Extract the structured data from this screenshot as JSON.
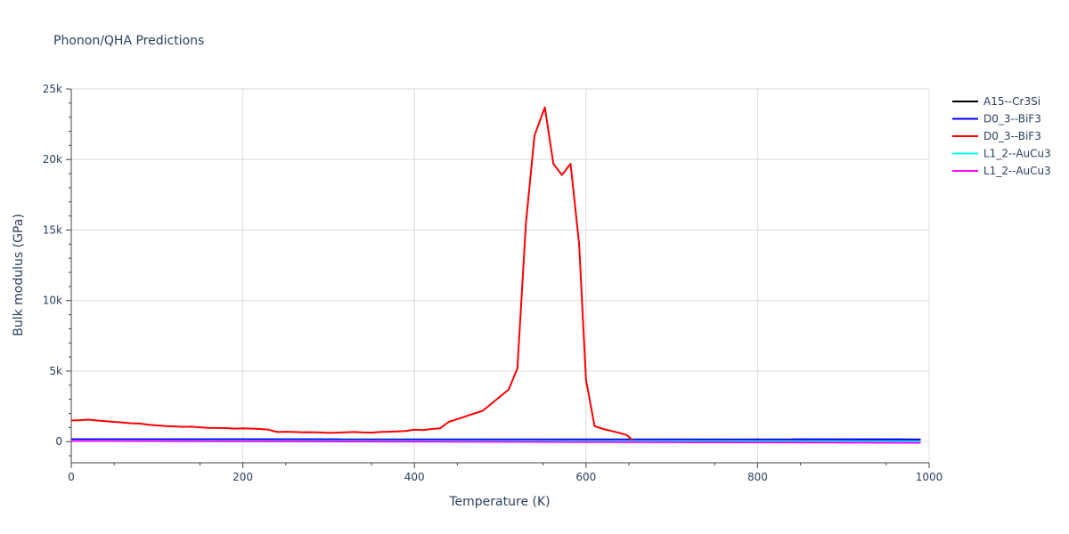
{
  "chart_data": {
    "type": "line",
    "title": "Phonon/QHA Predictions",
    "xlabel": "Temperature (K)",
    "ylabel": "Bulk modulus (GPa)",
    "xlim": [
      0,
      1000
    ],
    "ylim": [
      -1500,
      25000
    ],
    "x_ticks": [
      0,
      200,
      400,
      600,
      800,
      1000
    ],
    "x_tick_labels": [
      "0",
      "200",
      "400",
      "600",
      "800",
      "1000"
    ],
    "y_ticks": [
      0,
      5000,
      10000,
      15000,
      20000,
      25000
    ],
    "y_tick_labels": [
      "0",
      "5k",
      "10k",
      "15k",
      "20k",
      "25k"
    ],
    "grid": true,
    "legend_position": "top-right",
    "series": [
      {
        "name": "A15--Cr3Si",
        "color": "#000000",
        "x": [
          0,
          990
        ],
        "y": [
          150,
          150
        ]
      },
      {
        "name": "D0_3--BiF3",
        "color": "#0000ff",
        "x": [
          0,
          990
        ],
        "y": [
          170,
          160
        ]
      },
      {
        "name": "D0_3--BiF3",
        "color": "#ff0000",
        "x": [
          0,
          10,
          20,
          30,
          40,
          50,
          60,
          70,
          80,
          90,
          100,
          110,
          120,
          130,
          140,
          150,
          160,
          170,
          180,
          190,
          200,
          210,
          220,
          230,
          240,
          250,
          260,
          270,
          280,
          290,
          300,
          310,
          320,
          330,
          340,
          350,
          360,
          370,
          380,
          390,
          400,
          410,
          420,
          430,
          440,
          450,
          460,
          470,
          480,
          490,
          500,
          510,
          520,
          530,
          540,
          552,
          562,
          572,
          582,
          592,
          600,
          610,
          620,
          630,
          640,
          648,
          656
        ],
        "y": [
          1500,
          1520,
          1560,
          1500,
          1450,
          1400,
          1350,
          1300,
          1280,
          1200,
          1150,
          1100,
          1080,
          1050,
          1060,
          1020,
          980,
          970,
          960,
          920,
          940,
          920,
          900,
          850,
          680,
          700,
          680,
          660,
          670,
          650,
          620,
          640,
          660,
          680,
          650,
          640,
          680,
          700,
          720,
          750,
          850,
          820,
          900,
          950,
          1400,
          1600,
          1800,
          2000,
          2200,
          2700,
          3200,
          3700,
          5200,
          15500,
          21700,
          23700,
          19700,
          18900,
          19700,
          14000,
          4400,
          1100,
          900,
          750,
          600,
          450,
          0
        ]
      },
      {
        "name": "L1_2--AuCu3",
        "color": "#00ffff",
        "x": [
          0,
          990
        ],
        "y": [
          80,
          20
        ]
      },
      {
        "name": "L1_2--AuCu3",
        "color": "#ff00ff",
        "x": [
          0,
          990
        ],
        "y": [
          60,
          -80
        ]
      }
    ]
  }
}
